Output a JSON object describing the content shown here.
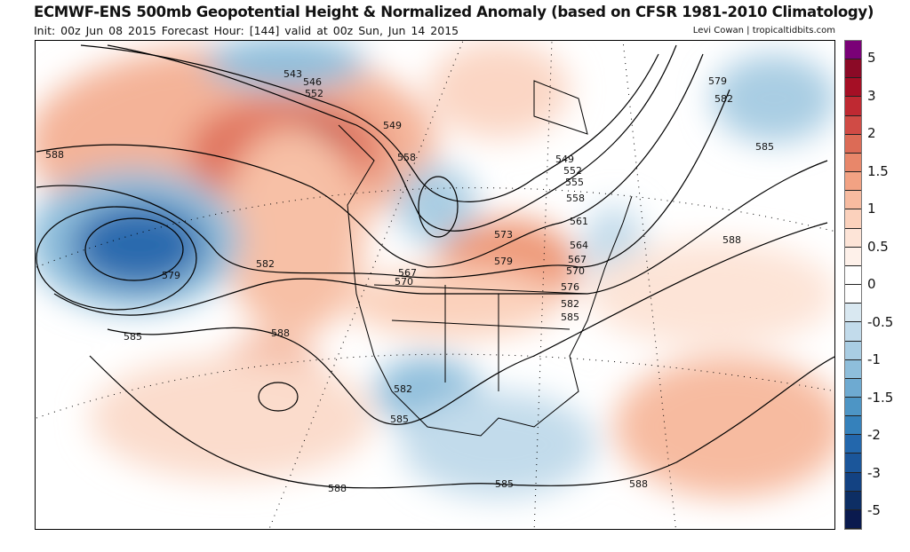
{
  "header": {
    "title": "ECMWF-ENS 500mb Geopotential Height & Normalized Anomaly (based on CFSR 1981-2010 Climatology)",
    "subtitle": "Init: 00z Jun 08 2015   Forecast Hour: [144]   valid at 00z Sun, Jun 14 2015",
    "credit": "Levi Cowan | tropicaltidbits.com"
  },
  "colorbar": {
    "labels": [
      "5",
      "3",
      "2",
      "1.5",
      "1",
      "0.5",
      "0",
      "-0.5",
      "-1",
      "-1.5",
      "-2",
      "-3",
      "-5"
    ],
    "colors": [
      "#7a0177",
      "#8b0a26",
      "#a50f25",
      "#bf2932",
      "#d04b45",
      "#dc6b56",
      "#e8876a",
      "#f2a283",
      "#f7bba0",
      "#fbd1bc",
      "#fde4d7",
      "#fef1ea",
      "#ffffff",
      "#ffffff",
      "#d9e8f1",
      "#c2dbeb",
      "#a9cde3",
      "#8ebedb",
      "#6eaad1",
      "#4d95c5",
      "#3581bb",
      "#2367ac",
      "#1b569a",
      "#134282",
      "#0d2e64",
      "#0a1a4e"
    ]
  },
  "contour_labels": [
    "543",
    "546",
    "552",
    "549",
    "558",
    "549",
    "552",
    "555",
    "558",
    "561",
    "564",
    "567",
    "570",
    "576",
    "582",
    "585",
    "573",
    "579",
    "567",
    "570",
    "582",
    "579",
    "588",
    "585",
    "588",
    "582",
    "585",
    "588",
    "585",
    "588",
    "588",
    "585",
    "582",
    "579"
  ]
}
